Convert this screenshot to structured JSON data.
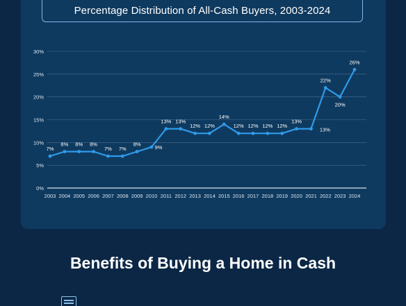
{
  "header": {
    "chart_title": "Percentage Distribution of All-Cash Buyers, 2003-2024"
  },
  "section": {
    "heading": "Benefits of Buying a Home in Cash"
  },
  "icons": {
    "benefit_icon": "document-icon"
  },
  "colors": {
    "background": "#0b2745",
    "panel": "#0f3a5f",
    "line": "#2f9bea",
    "title_border": "#7fb6e6"
  },
  "chart_data": {
    "type": "line",
    "title": "Percentage Distribution of All-Cash Buyers, 2003-2024",
    "xlabel": "",
    "ylabel": "",
    "x": [
      "2003",
      "2004",
      "2005",
      "2006",
      "2007",
      "2008",
      "2009",
      "2010",
      "2011",
      "2012",
      "2013",
      "2014",
      "2015",
      "2016",
      "2017",
      "2018",
      "2019",
      "2020",
      "2021",
      "2022",
      "2023",
      "2024"
    ],
    "series": [
      {
        "values": [
          7,
          8,
          8,
          8,
          7,
          7,
          8,
          9,
          13,
          13,
          12,
          12,
          14,
          12,
          12,
          12,
          12,
          13,
          13,
          22,
          20,
          26
        ]
      }
    ],
    "data_labels": [
      "7%",
      "8%",
      "8%",
      "8%",
      "7%",
      "7%",
      "8%",
      "9%",
      "13%",
      "13%",
      "12%",
      "12%",
      "14%",
      "12%",
      "12%",
      "12%",
      "12%",
      "13%",
      "13%",
      "22%",
      "20%",
      "26%"
    ],
    "y_ticks": [
      0,
      5,
      10,
      15,
      20,
      25,
      30
    ],
    "y_tick_labels": [
      "0%",
      "5%",
      "10%",
      "15%",
      "20%",
      "25%",
      "30%"
    ],
    "ylim": [
      0,
      30
    ],
    "grid": true,
    "legend": "none"
  }
}
